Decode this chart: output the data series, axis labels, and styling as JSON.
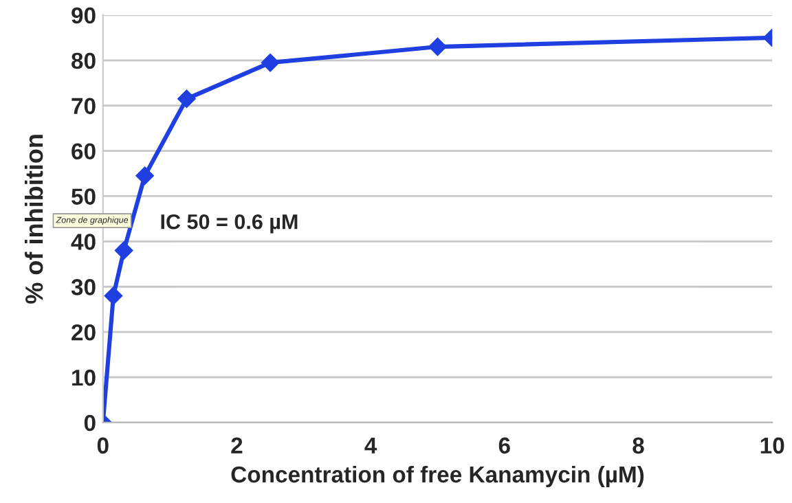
{
  "chart_data": {
    "type": "line",
    "xlabel": "Concentration of free Kanamycin (µM)",
    "ylabel": "% of inhibition",
    "x": [
      0,
      0.156,
      0.3125,
      0.625,
      1.25,
      2.5,
      5,
      10
    ],
    "series": [
      {
        "color": "#1f3fe0",
        "values": [
          0,
          28,
          38,
          54.5,
          71.5,
          79.5,
          83,
          85
        ]
      }
    ],
    "xlim": [
      0,
      10
    ],
    "xticks": [
      0,
      2,
      4,
      6,
      8,
      10
    ],
    "ylim": [
      0,
      90
    ],
    "yticks": [
      0,
      10,
      20,
      30,
      40,
      50,
      60,
      70,
      80,
      90
    ],
    "grid": "y",
    "marker": "diamond",
    "line_style": "solid",
    "annotations": [
      "IC 50 = 0.6 µM",
      "Zone de graphique"
    ]
  }
}
